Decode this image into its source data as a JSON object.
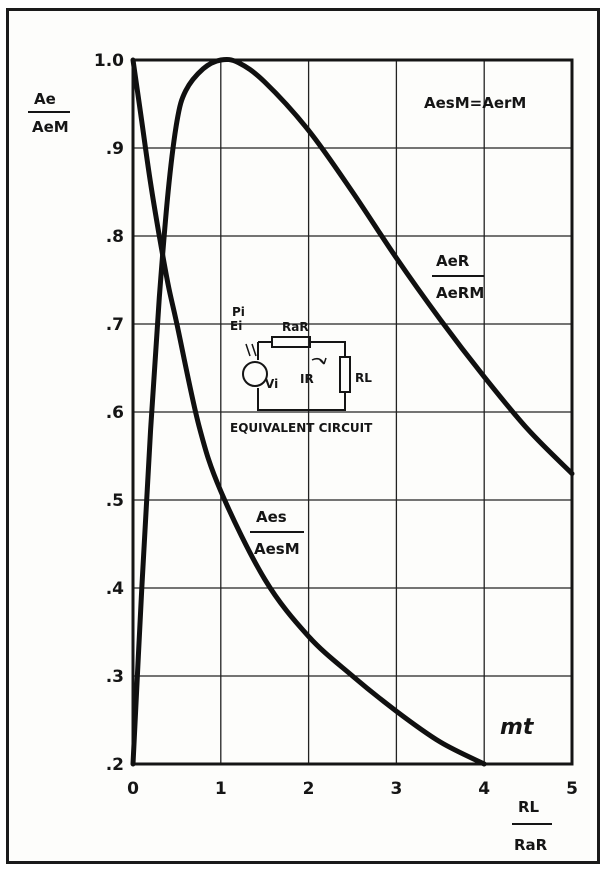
{
  "chart_data": {
    "type": "line",
    "title": "",
    "annotation": "AesM=AerM",
    "ylabel_num": "Ae",
    "ylabel_den": "AeM",
    "xlabel_num": "RL",
    "xlabel_den": "RaR",
    "xlim": [
      0,
      5
    ],
    "ylim": [
      0.2,
      1.0
    ],
    "grid": true,
    "x_ticks": [
      "0",
      "1",
      "2",
      "3",
      "4",
      "5"
    ],
    "y_ticks": [
      {
        "value": 1.0,
        "label": "1.0"
      },
      {
        "value": 0.9,
        "label": ".9"
      },
      {
        "value": 0.8,
        "label": ".8"
      },
      {
        "value": 0.7,
        "label": ".7"
      },
      {
        "value": 0.6,
        "label": ".6"
      },
      {
        "value": 0.5,
        "label": ".5"
      },
      {
        "value": 0.4,
        "label": ".4"
      },
      {
        "value": 0.3,
        "label": ".3"
      },
      {
        "value": 0.2,
        "label": ".2"
      }
    ],
    "series": [
      {
        "name": "Aer/AerM",
        "label_num": "AeR",
        "label_den": "AeRM",
        "x": [
          0.0,
          0.1,
          0.2,
          0.3,
          0.4,
          0.5,
          0.6,
          0.8,
          1.0,
          1.2,
          1.5,
          2.0,
          2.5,
          3.0,
          3.5,
          4.0,
          4.5,
          5.0
        ],
        "y": [
          0.2,
          0.4,
          0.58,
          0.73,
          0.85,
          0.93,
          0.965,
          0.99,
          1.0,
          0.997,
          0.975,
          0.92,
          0.85,
          0.775,
          0.705,
          0.64,
          0.58,
          0.53
        ]
      },
      {
        "name": "Aes/AesM",
        "label_num": "Aes",
        "label_den": "AesM",
        "x": [
          0.0,
          0.1,
          0.2,
          0.3,
          0.4,
          0.5,
          0.75,
          1.0,
          1.5,
          2.0,
          2.5,
          3.0,
          3.5,
          4.0
        ],
        "y": [
          1.0,
          0.93,
          0.86,
          0.8,
          0.745,
          0.7,
          0.585,
          0.51,
          0.41,
          0.345,
          0.3,
          0.26,
          0.225,
          0.2
        ]
      }
    ],
    "inset": {
      "caption": "EQUIVALENT CIRCUIT",
      "resistor_top": "RaR",
      "resistor_right": "RL",
      "current": "IR",
      "source": "Vi",
      "input_top": "Pi",
      "input_bottom": "Ei"
    },
    "signature": "mt"
  }
}
